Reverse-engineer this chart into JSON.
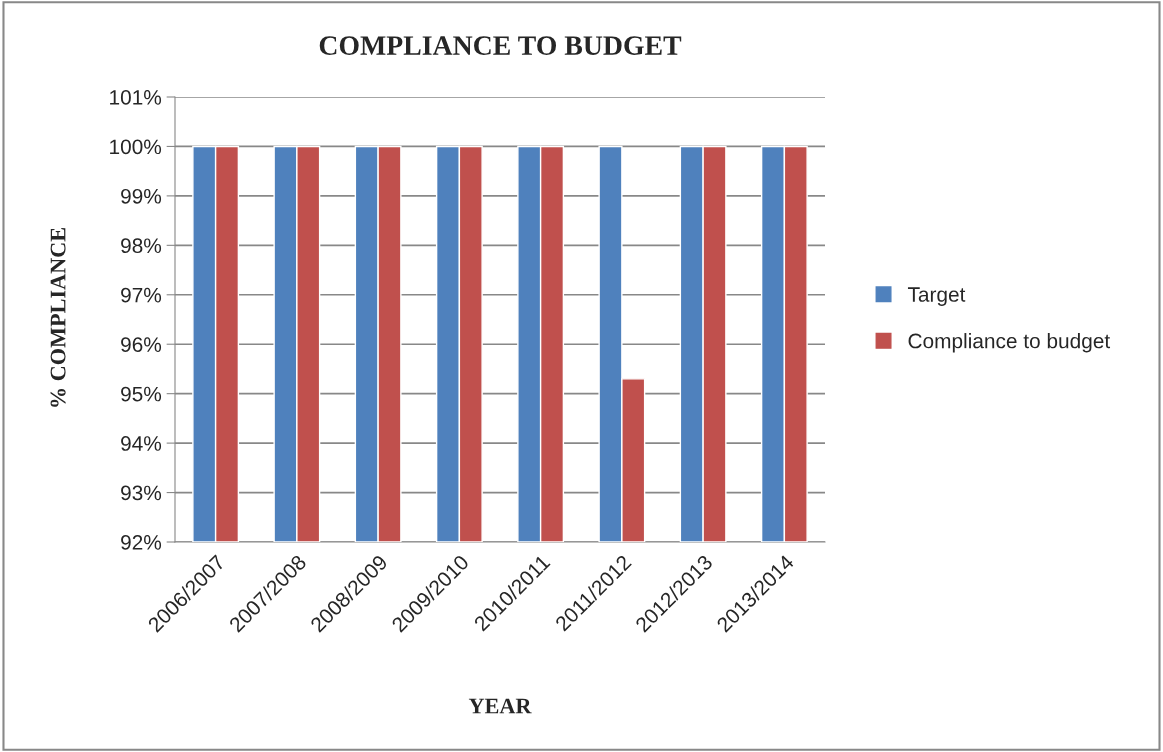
{
  "chart_data": {
    "type": "bar",
    "title": "COMPLIANCE TO BUDGET",
    "xlabel": "YEAR",
    "ylabel": "% COMPLIANCE",
    "categories": [
      "2006/2007",
      "2007/2008",
      "2008/2009",
      "2009/2010",
      "2010/2011",
      "2011/2012",
      "2012/2013",
      "2013/2014"
    ],
    "series": [
      {
        "name": "Target",
        "color": "#4f81bd",
        "values": [
          100,
          100,
          100,
          100,
          100,
          100,
          100,
          100
        ]
      },
      {
        "name": "Compliance to budget",
        "color": "#c0504d",
        "values": [
          100,
          100,
          100,
          100,
          100,
          95.3,
          100,
          100
        ]
      }
    ],
    "ylim": [
      92,
      101
    ],
    "yticks": [
      {
        "value": 92,
        "label": "92%"
      },
      {
        "value": 93,
        "label": "93%"
      },
      {
        "value": 94,
        "label": "94%"
      },
      {
        "value": 95,
        "label": "95%"
      },
      {
        "value": 96,
        "label": "96%"
      },
      {
        "value": 97,
        "label": "97%"
      },
      {
        "value": 98,
        "label": "98%"
      },
      {
        "value": 99,
        "label": "99%"
      },
      {
        "value": 100,
        "label": "100%"
      },
      {
        "value": 101,
        "label": "101%"
      }
    ],
    "grid": "y",
    "legend": "right"
  }
}
